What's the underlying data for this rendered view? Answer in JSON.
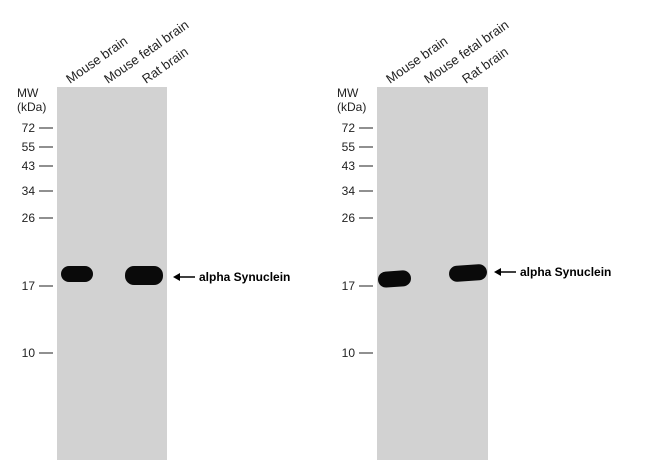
{
  "panels": [
    {
      "lanes": [
        "Mouse brain",
        "Mouse fetal brain",
        "Rat brain"
      ],
      "mw": "MW",
      "unit": "(kDa)",
      "markers": [
        "72",
        "55",
        "43",
        "34",
        "26",
        "17",
        "10"
      ],
      "band_label": "alpha Synuclein"
    },
    {
      "lanes": [
        "Mouse brain",
        "Mouse fetal brain",
        "Rat brain"
      ],
      "mw": "MW",
      "unit": "(kDa)",
      "markers": [
        "72",
        "55",
        "43",
        "34",
        "26",
        "17",
        "10"
      ],
      "band_label": "alpha Synuclein"
    }
  ]
}
